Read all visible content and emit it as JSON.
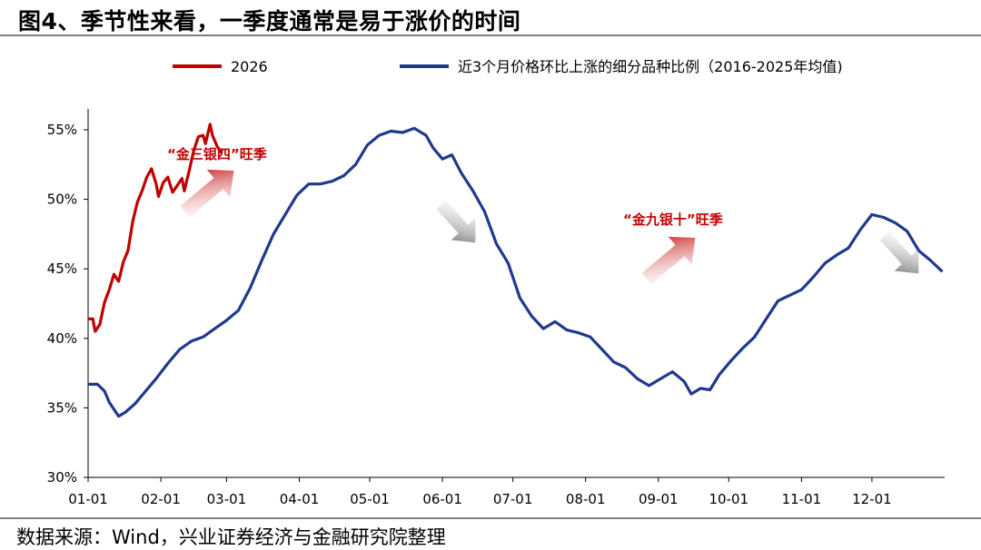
{
  "title": "图4、季节性来看，一季度通常是易于涨价的时间",
  "source": "数据来源：Wind，兴业证券经济与金融研究院整理",
  "colors": {
    "series_2026": "#c00000",
    "series_avg": "#1f3a8c",
    "annotation_text": "#c00000",
    "arrow_up": "#c00000",
    "arrow_down": "#808080"
  },
  "chart_data": {
    "type": "line",
    "xlabel": "",
    "ylabel": "",
    "x_tick_labels": [
      "01-01",
      "02-01",
      "03-01",
      "04-01",
      "05-01",
      "06-01",
      "07-01",
      "08-01",
      "09-01",
      "10-01",
      "11-01",
      "12-01"
    ],
    "y_tick_labels": [
      "30%",
      "35%",
      "40%",
      "45%",
      "50%",
      "55%"
    ],
    "ylim": [
      30,
      56.5
    ],
    "xlim": [
      1,
      366
    ],
    "x_unit": "day of year",
    "y_unit": "%",
    "grid": false,
    "legend_position": "top",
    "series": [
      {
        "name": "2026",
        "color": "#c00000",
        "points": [
          [
            1,
            41.4
          ],
          [
            3,
            41.4
          ],
          [
            4,
            40.5
          ],
          [
            6,
            41.0
          ],
          [
            8,
            42.6
          ],
          [
            10,
            43.5
          ],
          [
            12,
            44.6
          ],
          [
            14,
            44.1
          ],
          [
            16,
            45.5
          ],
          [
            18,
            46.3
          ],
          [
            20,
            48.4
          ],
          [
            22,
            49.8
          ],
          [
            24,
            50.6
          ],
          [
            26,
            51.6
          ],
          [
            28,
            52.2
          ],
          [
            30,
            51.1
          ],
          [
            31,
            50.2
          ],
          [
            33,
            51.2
          ],
          [
            35,
            51.6
          ],
          [
            37,
            50.5
          ],
          [
            39,
            51.0
          ],
          [
            41,
            51.5
          ],
          [
            42,
            50.6
          ],
          [
            44,
            52.0
          ],
          [
            46,
            53.5
          ],
          [
            48,
            54.5
          ],
          [
            50,
            54.6
          ],
          [
            51,
            54.0
          ],
          [
            53,
            55.4
          ],
          [
            54,
            54.6
          ],
          [
            56,
            53.8
          ],
          [
            58,
            53.3
          ]
        ]
      },
      {
        "name": "近3个月价格环比上涨的细分品种比例（2016-2025年均值)",
        "color": "#1f3a8c",
        "points": [
          [
            1,
            36.7
          ],
          [
            5,
            36.7
          ],
          [
            8,
            36.2
          ],
          [
            10,
            35.4
          ],
          [
            12,
            34.9
          ],
          [
            14,
            34.4
          ],
          [
            17,
            34.7
          ],
          [
            21,
            35.3
          ],
          [
            25,
            36.1
          ],
          [
            30,
            37.1
          ],
          [
            35,
            38.2
          ],
          [
            40,
            39.2
          ],
          [
            45,
            39.8
          ],
          [
            50,
            40.1
          ],
          [
            55,
            40.7
          ],
          [
            60,
            41.3
          ],
          [
            65,
            42.0
          ],
          [
            70,
            43.6
          ],
          [
            75,
            45.6
          ],
          [
            80,
            47.5
          ],
          [
            85,
            48.9
          ],
          [
            90,
            50.3
          ],
          [
            95,
            51.1
          ],
          [
            100,
            51.1
          ],
          [
            105,
            51.3
          ],
          [
            110,
            51.7
          ],
          [
            115,
            52.5
          ],
          [
            120,
            53.9
          ],
          [
            125,
            54.6
          ],
          [
            130,
            54.9
          ],
          [
            135,
            54.8
          ],
          [
            140,
            55.1
          ],
          [
            145,
            54.6
          ],
          [
            148,
            53.7
          ],
          [
            152,
            52.9
          ],
          [
            156,
            53.2
          ],
          [
            160,
            51.9
          ],
          [
            165,
            50.6
          ],
          [
            170,
            49.1
          ],
          [
            175,
            46.8
          ],
          [
            180,
            45.4
          ],
          [
            185,
            42.9
          ],
          [
            190,
            41.6
          ],
          [
            195,
            40.7
          ],
          [
            200,
            41.2
          ],
          [
            205,
            40.6
          ],
          [
            210,
            40.4
          ],
          [
            215,
            40.1
          ],
          [
            220,
            39.2
          ],
          [
            225,
            38.3
          ],
          [
            230,
            37.9
          ],
          [
            235,
            37.1
          ],
          [
            240,
            36.6
          ],
          [
            245,
            37.1
          ],
          [
            250,
            37.6
          ],
          [
            255,
            36.9
          ],
          [
            258,
            36.0
          ],
          [
            262,
            36.4
          ],
          [
            266,
            36.3
          ],
          [
            270,
            37.4
          ],
          [
            275,
            38.4
          ],
          [
            280,
            39.3
          ],
          [
            285,
            40.1
          ],
          [
            290,
            41.4
          ],
          [
            295,
            42.7
          ],
          [
            300,
            43.1
          ],
          [
            305,
            43.5
          ],
          [
            310,
            44.4
          ],
          [
            315,
            45.4
          ],
          [
            320,
            46.0
          ],
          [
            325,
            46.5
          ],
          [
            330,
            47.8
          ],
          [
            335,
            48.9
          ],
          [
            340,
            48.7
          ],
          [
            345,
            48.3
          ],
          [
            350,
            47.7
          ],
          [
            355,
            46.3
          ],
          [
            360,
            45.6
          ],
          [
            365,
            44.8
          ]
        ]
      }
    ],
    "annotations": [
      {
        "text": "“金三银四”旺季",
        "near_x": 70,
        "near_y": 51.7
      },
      {
        "text": "“金九银十”旺季",
        "near_x": 285,
        "near_y": 46.2
      }
    ]
  }
}
